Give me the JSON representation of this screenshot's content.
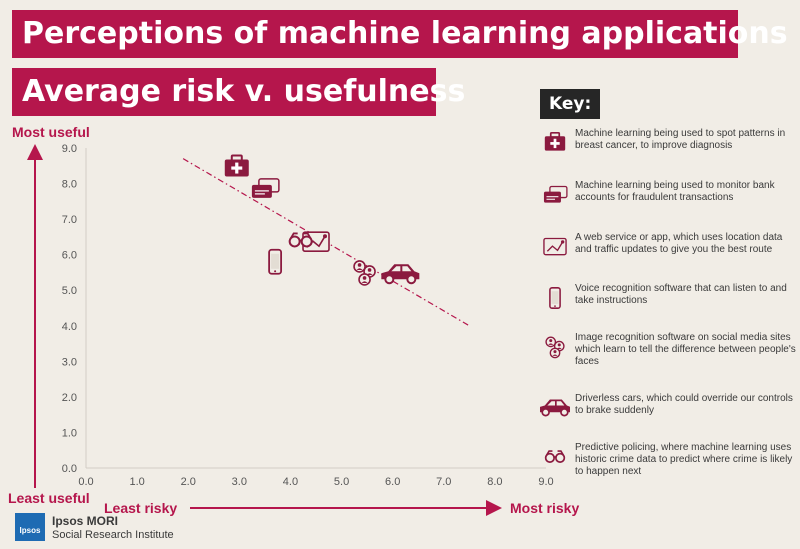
{
  "header": {
    "title": "Perceptions of machine learning applications",
    "subtitle": "Average risk v. usefulness"
  },
  "colors": {
    "accent": "#b5164c",
    "icon": "#8b1a3f",
    "key_bg": "#262626",
    "background": "#f1ede6"
  },
  "axis_labels": {
    "y_top": "Most useful",
    "y_bottom": "Least useful",
    "x_left": "Least risky",
    "x_right": "Most risky"
  },
  "key": {
    "title": "Key:",
    "items": [
      {
        "icon": "medical-kit-icon",
        "text": "Machine learning being used to spot patterns in breast cancer, to improve diagnosis"
      },
      {
        "icon": "bank-card-icon",
        "text": "Machine learning being used to monitor bank accounts for fraudulent transactions"
      },
      {
        "icon": "map-route-icon",
        "text": "A web service or app, which uses location data and traffic updates to give you the best route"
      },
      {
        "icon": "phone-icon",
        "text": "Voice recognition software that can listen to and take instructions"
      },
      {
        "icon": "faces-icon",
        "text": "Image recognition software on social media sites which learn to tell the difference between people's faces"
      },
      {
        "icon": "car-icon",
        "text": "Driverless cars, which could override our controls to brake suddenly"
      },
      {
        "icon": "binoculars-icon",
        "text": "Predictive policing, where machine learning uses historic crime data to predict where crime is likely to happen next"
      }
    ]
  },
  "logo": {
    "badge": "Ipsos",
    "name": "Ipsos MORI",
    "subtitle": "Social Research Institute"
  },
  "chart_data": {
    "type": "scatter",
    "xlim": [
      0,
      9
    ],
    "ylim": [
      0,
      9
    ],
    "x_ticks": [
      "0.0",
      "1.0",
      "2.0",
      "3.0",
      "4.0",
      "5.0",
      "6.0",
      "7.0",
      "8.0",
      "9.0"
    ],
    "y_ticks": [
      "0.0",
      "1.0",
      "2.0",
      "3.0",
      "4.0",
      "5.0",
      "6.0",
      "7.0",
      "8.0",
      "9.0"
    ],
    "grid": false,
    "points": [
      {
        "icon": "medical-kit-icon",
        "x": 2.95,
        "y": 8.45
      },
      {
        "icon": "bank-card-icon",
        "x": 3.5,
        "y": 7.85
      },
      {
        "icon": "map-route-icon",
        "x": 4.5,
        "y": 6.35
      },
      {
        "icon": "phone-icon",
        "x": 3.7,
        "y": 5.8
      },
      {
        "icon": "faces-icon",
        "x": 5.45,
        "y": 5.5
      },
      {
        "icon": "car-icon",
        "x": 6.15,
        "y": 5.45
      },
      {
        "icon": "binoculars-icon",
        "x": 4.2,
        "y": 6.4
      }
    ],
    "trendline": {
      "x": [
        1.9,
        7.5
      ],
      "y": [
        8.7,
        4.0
      ],
      "style": "dash-dot"
    }
  }
}
